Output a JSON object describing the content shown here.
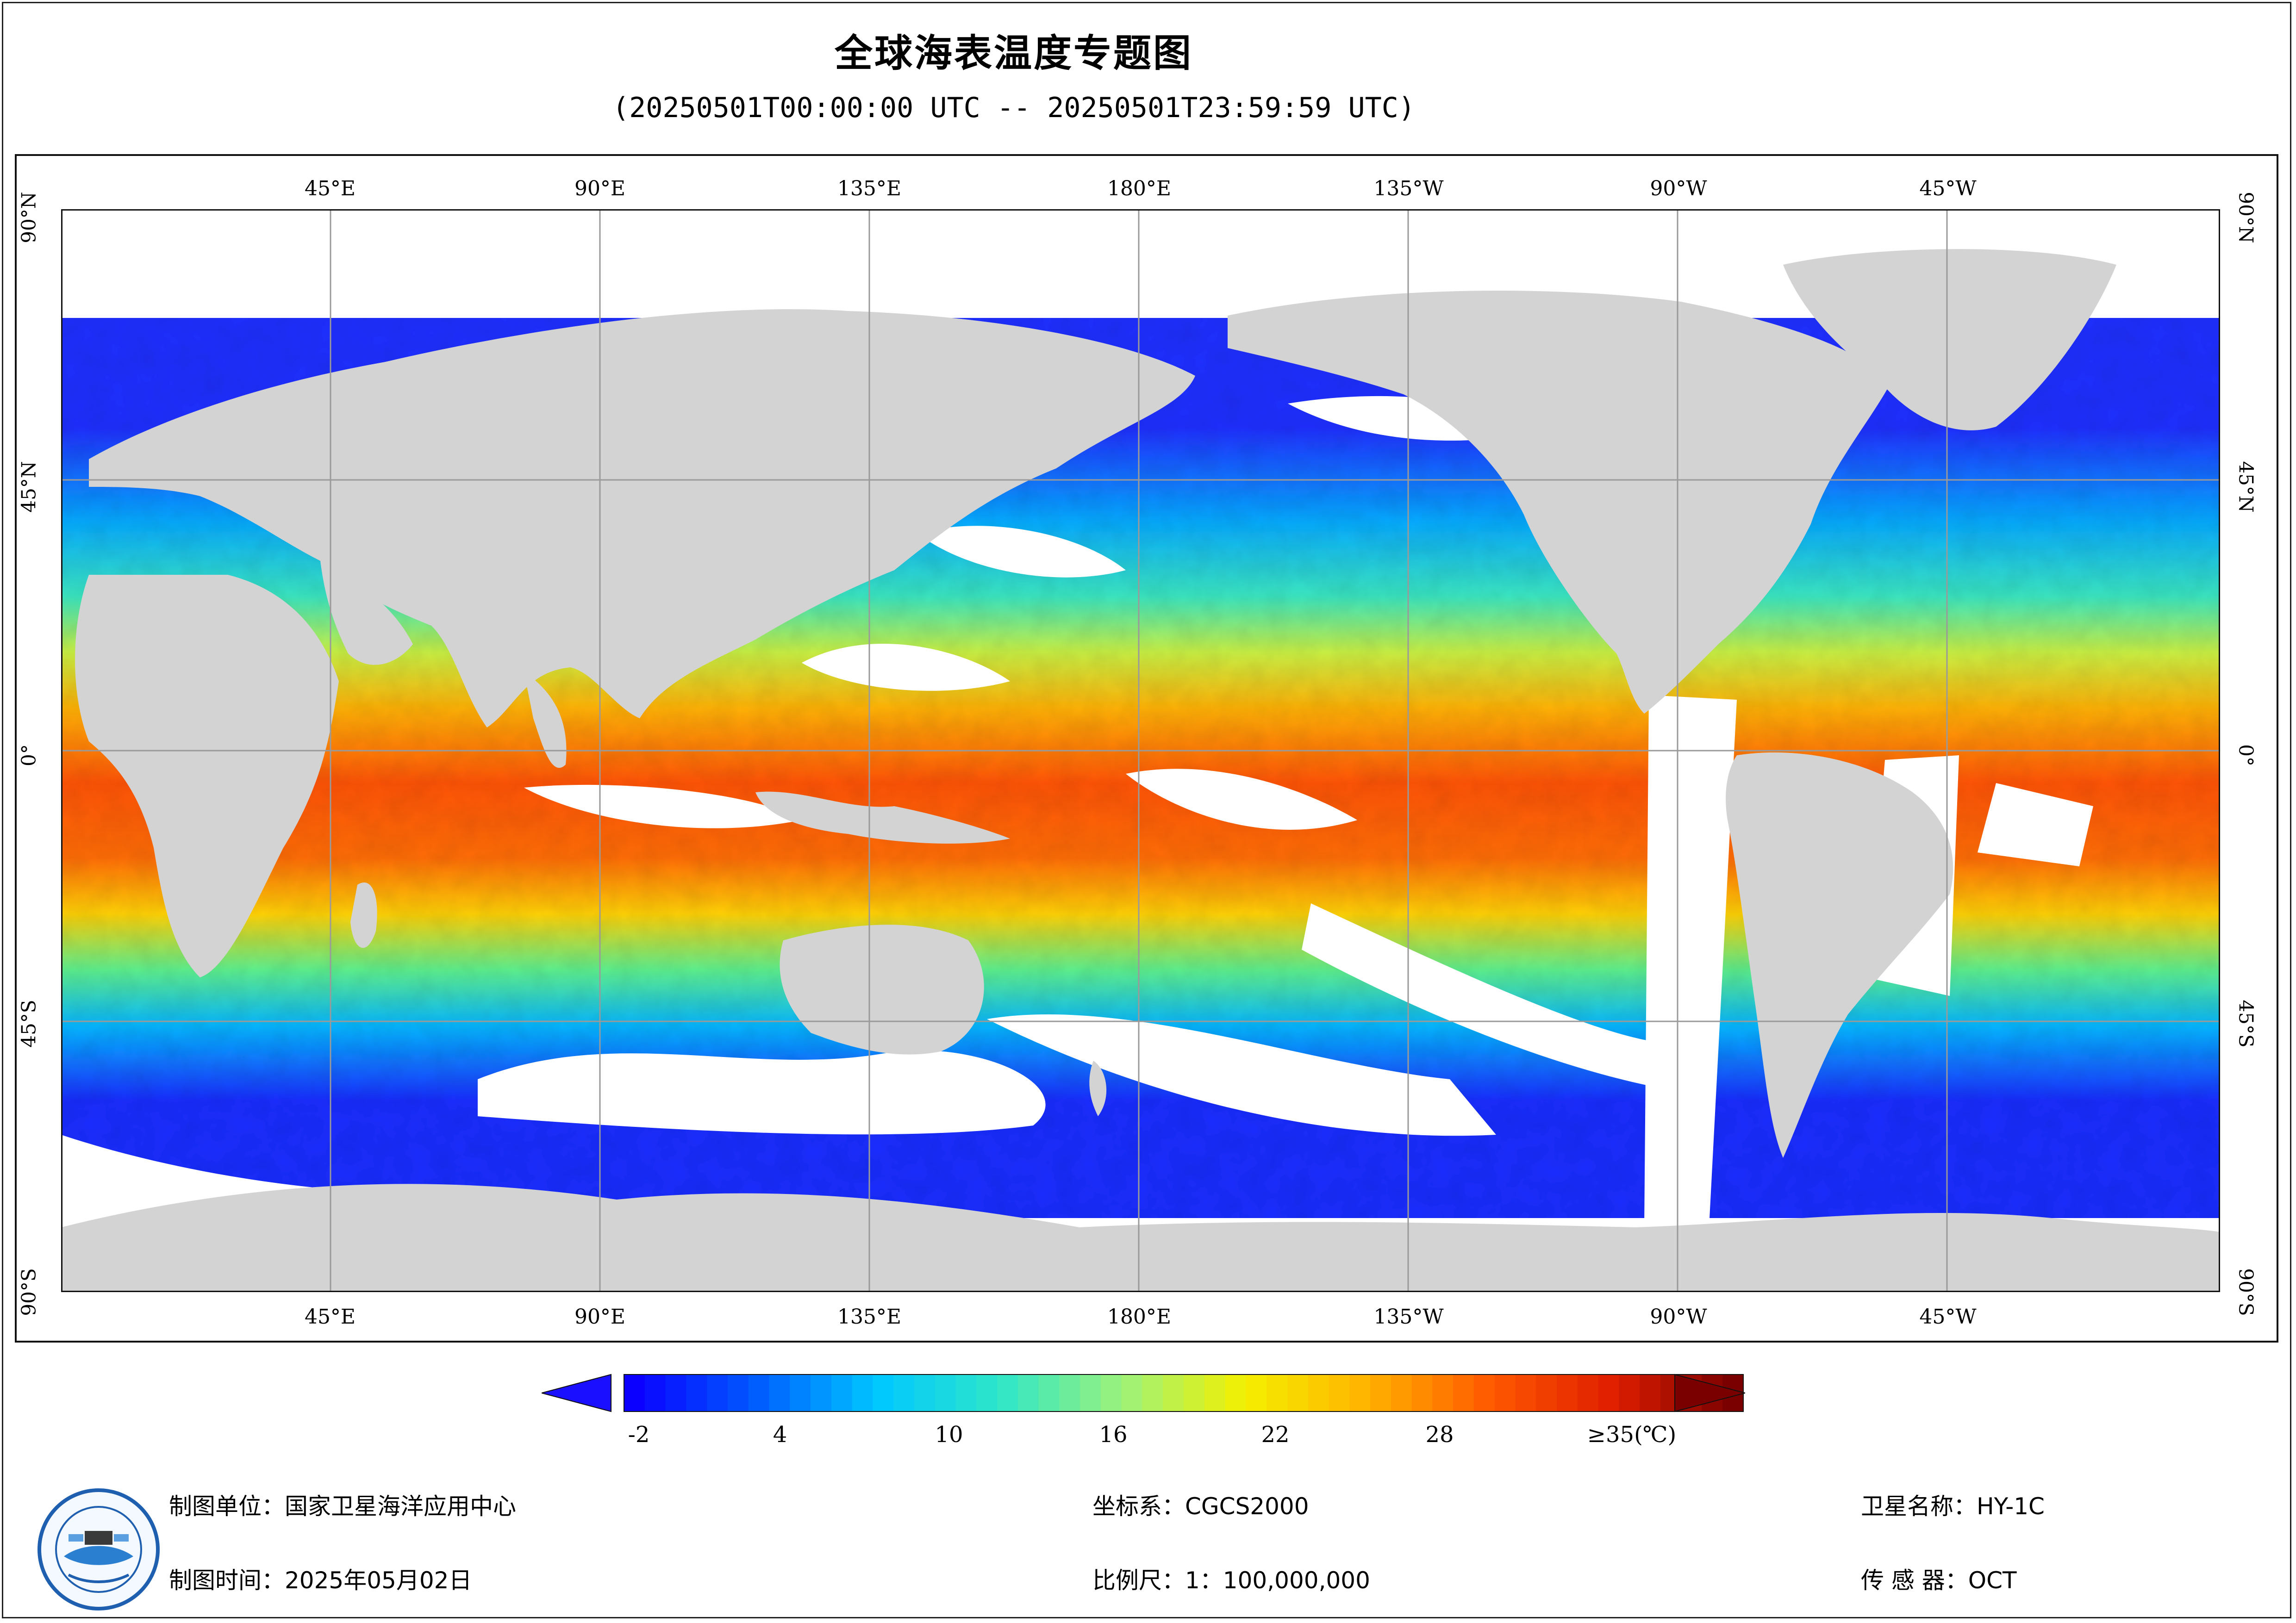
{
  "title": "全球海表温度专题图",
  "subtitle": "(20250501T00:00:00 UTC -- 20250501T23:59:59 UTC)",
  "map": {
    "lon_labels": [
      "45°E",
      "90°E",
      "135°E",
      "180°E",
      "135°W",
      "90°W",
      "45°W"
    ],
    "lat_labels": [
      "90°N",
      "45°N",
      "0°",
      "45°S",
      "90°S"
    ],
    "colors": {
      "land": "#d3d3d3",
      "nodata": "#ffffff",
      "grid": "#9a9a9a"
    }
  },
  "colorbar": {
    "ticks": [
      "-2",
      "4",
      "10",
      "16",
      "22",
      "28"
    ],
    "max_label": "≥35(℃)",
    "range": [
      -2,
      35
    ],
    "stops": [
      "#0b00ff",
      "#005cff",
      "#00c8ff",
      "#2fe6c8",
      "#9cf27a",
      "#f4f000",
      "#ffb300",
      "#ff5a00",
      "#e01f00",
      "#7a0000"
    ]
  },
  "footer": {
    "org": "制图单位：国家卫星海洋应用中心",
    "date": "制图时间：2025年05月02日",
    "crs": "坐标系：CGCS2000",
    "scale": "比例尺：1：100,000,000",
    "satellite": "卫星名称：HY-1C",
    "sensor": "传  感  器：OCT"
  }
}
